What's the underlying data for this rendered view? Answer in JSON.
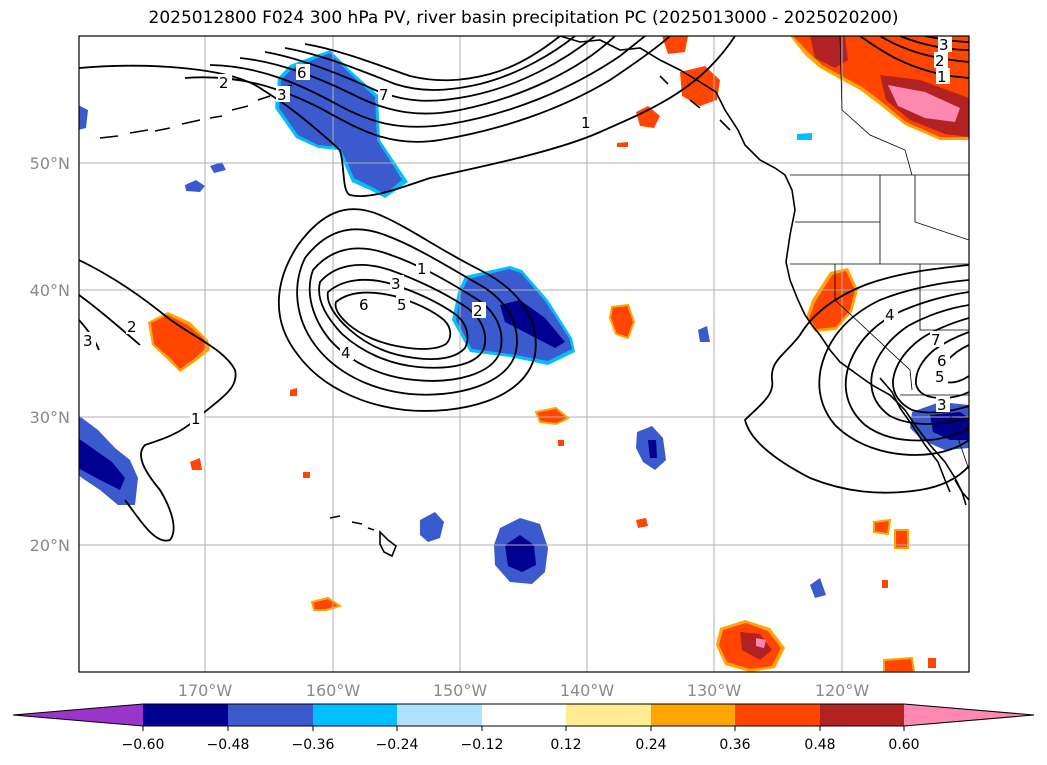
{
  "title": "2025012800 F024 300 hPa PV, river basin precipitation PC (2025013000 - 2025020200)",
  "map": {
    "lat_labels": [
      "50°N",
      "40°N",
      "30°N",
      "20°N"
    ],
    "lon_labels": [
      "170°W",
      "160°W",
      "150°W",
      "140°W",
      "130°W",
      "120°W"
    ],
    "lat_range": [
      10,
      60
    ],
    "lon_range": [
      -180,
      -110
    ]
  },
  "pv_contour_labels": [
    {
      "id": "nw-2",
      "text": "2"
    },
    {
      "id": "nw-6",
      "text": "6"
    },
    {
      "id": "nw-3",
      "text": "3"
    },
    {
      "id": "nw-7",
      "text": "7"
    },
    {
      "id": "nw-1",
      "text": "1"
    },
    {
      "id": "ne-3",
      "text": "3"
    },
    {
      "id": "ne-2",
      "text": "2"
    },
    {
      "id": "ne-1",
      "text": "1"
    },
    {
      "id": "c-1",
      "text": "1"
    },
    {
      "id": "c-3",
      "text": "3"
    },
    {
      "id": "c-6",
      "text": "6"
    },
    {
      "id": "c-5",
      "text": "5"
    },
    {
      "id": "c-2",
      "text": "2"
    },
    {
      "id": "c-4",
      "text": "4"
    },
    {
      "id": "w-2",
      "text": "2"
    },
    {
      "id": "w-3",
      "text": "3"
    },
    {
      "id": "w-1",
      "text": "1"
    },
    {
      "id": "e-4",
      "text": "4"
    },
    {
      "id": "e-7",
      "text": "7"
    },
    {
      "id": "e-6",
      "text": "6"
    },
    {
      "id": "e-5",
      "text": "5"
    },
    {
      "id": "e-3",
      "text": "3"
    }
  ],
  "colorbar": {
    "ticks": [
      "−0.60",
      "−0.48",
      "−0.36",
      "−0.24",
      "−0.12",
      "0.12",
      "0.24",
      "0.36",
      "0.48",
      "0.60"
    ],
    "under_color": "#9a35cc",
    "over_color": "#ff88b0",
    "colors": [
      "#000090",
      "#3a5acd",
      "#00bfff",
      "#b0e2ff",
      "#ffffff",
      "#ffeb90",
      "#ffa500",
      "#ff4500",
      "#b22222",
      "#ff88b0"
    ]
  },
  "colors": {
    "blue_dark": "#000090",
    "blue_mid": "#3a5acd",
    "blue_light": "#00bfff",
    "red": "#ff4500",
    "red_dark": "#b22222",
    "orange": "#ffa500",
    "yellow": "#ffeb90",
    "pink": "#ff88b0",
    "grid": "#b0b0b0"
  }
}
